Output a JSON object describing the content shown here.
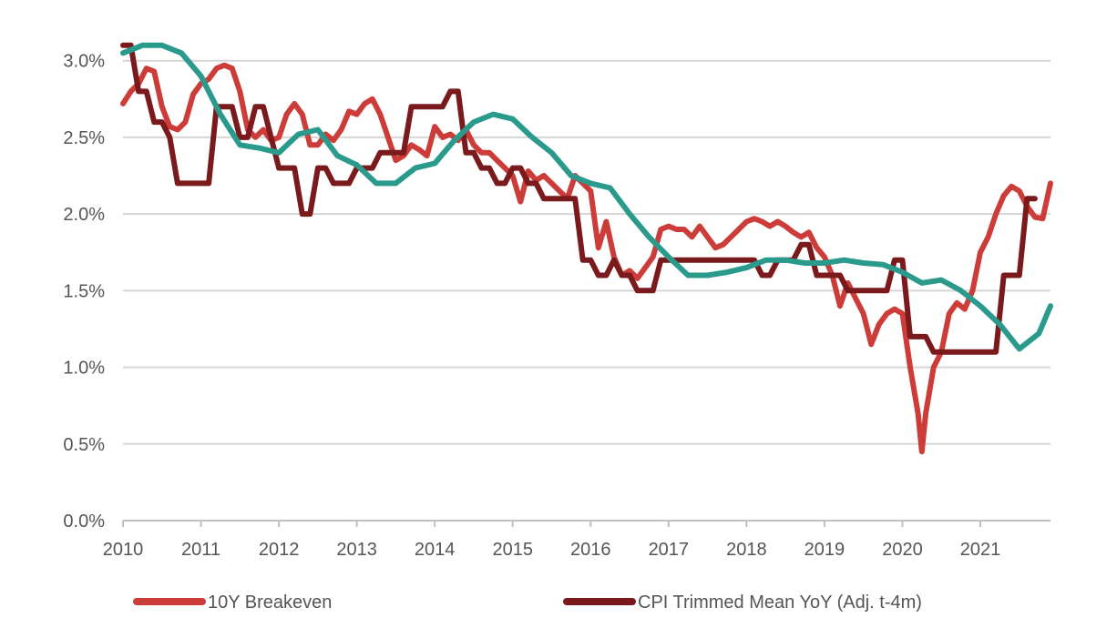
{
  "chart_data": {
    "type": "line",
    "title": "",
    "xlabel": "",
    "ylabel": "",
    "xlim": [
      2010,
      2021.9
    ],
    "ylim": [
      0,
      3.2
    ],
    "x_ticks": [
      "2010",
      "2011",
      "2012",
      "2013",
      "2014",
      "2015",
      "2016",
      "2017",
      "2018",
      "2019",
      "2020",
      "2021"
    ],
    "y_ticks": [
      "0.0%",
      "0.5%",
      "1.0%",
      "1.5%",
      "2.0%",
      "2.5%",
      "3.0%"
    ],
    "y_tick_values": [
      0,
      0.5,
      1.0,
      1.5,
      2.0,
      2.5,
      3.0
    ],
    "grid": "horizontal",
    "legend_position": "bottom",
    "series": [
      {
        "name": "10Y Breakeven",
        "color": "#cc3d3a",
        "x": [
          2010.0,
          2010.1,
          2010.2,
          2010.3,
          2010.4,
          2010.5,
          2010.6,
          2010.7,
          2010.8,
          2010.9,
          2011.0,
          2011.1,
          2011.2,
          2011.3,
          2011.4,
          2011.5,
          2011.6,
          2011.7,
          2011.8,
          2011.9,
          2012.0,
          2012.1,
          2012.2,
          2012.3,
          2012.4,
          2012.5,
          2012.6,
          2012.7,
          2012.8,
          2012.9,
          2013.0,
          2013.1,
          2013.2,
          2013.3,
          2013.4,
          2013.5,
          2013.6,
          2013.7,
          2013.8,
          2013.9,
          2014.0,
          2014.1,
          2014.2,
          2014.3,
          2014.4,
          2014.5,
          2014.6,
          2014.7,
          2014.8,
          2014.9,
          2015.0,
          2015.1,
          2015.2,
          2015.3,
          2015.4,
          2015.5,
          2015.6,
          2015.7,
          2015.8,
          2015.9,
          2016.0,
          2016.1,
          2016.2,
          2016.3,
          2016.4,
          2016.5,
          2016.6,
          2016.7,
          2016.8,
          2016.9,
          2017.0,
          2017.1,
          2017.2,
          2017.3,
          2017.4,
          2017.5,
          2017.6,
          2017.7,
          2017.8,
          2017.9,
          2018.0,
          2018.1,
          2018.2,
          2018.3,
          2018.4,
          2018.5,
          2018.6,
          2018.7,
          2018.8,
          2018.9,
          2019.0,
          2019.1,
          2019.2,
          2019.3,
          2019.4,
          2019.5,
          2019.6,
          2019.7,
          2019.8,
          2019.9,
          2020.0,
          2020.1,
          2020.2,
          2020.25,
          2020.3,
          2020.4,
          2020.5,
          2020.6,
          2020.7,
          2020.8,
          2020.9,
          2021.0,
          2021.1,
          2021.2,
          2021.3,
          2021.4,
          2021.5,
          2021.6,
          2021.7,
          2021.8,
          2021.9
        ],
        "values": [
          2.72,
          2.8,
          2.85,
          2.95,
          2.93,
          2.7,
          2.57,
          2.55,
          2.6,
          2.78,
          2.85,
          2.88,
          2.95,
          2.97,
          2.95,
          2.8,
          2.55,
          2.5,
          2.55,
          2.48,
          2.5,
          2.65,
          2.72,
          2.65,
          2.45,
          2.45,
          2.52,
          2.48,
          2.55,
          2.67,
          2.65,
          2.72,
          2.75,
          2.65,
          2.5,
          2.35,
          2.38,
          2.45,
          2.42,
          2.38,
          2.57,
          2.5,
          2.52,
          2.48,
          2.55,
          2.45,
          2.4,
          2.4,
          2.35,
          2.3,
          2.25,
          2.08,
          2.28,
          2.22,
          2.25,
          2.2,
          2.15,
          2.1,
          2.25,
          2.2,
          2.15,
          1.78,
          1.95,
          1.72,
          1.6,
          1.63,
          1.58,
          1.65,
          1.72,
          1.9,
          1.92,
          1.9,
          1.9,
          1.85,
          1.92,
          1.85,
          1.78,
          1.8,
          1.85,
          1.9,
          1.95,
          1.97,
          1.95,
          1.92,
          1.95,
          1.92,
          1.88,
          1.85,
          1.88,
          1.78,
          1.72,
          1.6,
          1.4,
          1.55,
          1.45,
          1.35,
          1.15,
          1.28,
          1.35,
          1.38,
          1.35,
          1.0,
          0.7,
          0.45,
          0.7,
          1.0,
          1.1,
          1.35,
          1.42,
          1.38,
          1.5,
          1.75,
          1.85,
          2.0,
          2.12,
          2.18,
          2.15,
          2.05,
          1.98,
          1.97,
          2.2
        ]
      },
      {
        "name": "CPI Trimmed Mean YoY (Adj. t-4m)",
        "color": "#7a1a1c",
        "x": [
          2010.0,
          2010.1,
          2010.2,
          2010.3,
          2010.4,
          2010.5,
          2010.6,
          2010.7,
          2010.8,
          2010.9,
          2011.0,
          2011.1,
          2011.2,
          2011.3,
          2011.4,
          2011.5,
          2011.6,
          2011.7,
          2011.8,
          2011.9,
          2012.0,
          2012.1,
          2012.2,
          2012.3,
          2012.4,
          2012.5,
          2012.6,
          2012.7,
          2012.8,
          2012.9,
          2013.0,
          2013.1,
          2013.2,
          2013.3,
          2013.4,
          2013.5,
          2013.6,
          2013.7,
          2013.8,
          2013.9,
          2014.0,
          2014.1,
          2014.2,
          2014.3,
          2014.4,
          2014.5,
          2014.6,
          2014.7,
          2014.8,
          2014.9,
          2015.0,
          2015.1,
          2015.2,
          2015.3,
          2015.4,
          2015.5,
          2015.6,
          2015.7,
          2015.8,
          2015.9,
          2016.0,
          2016.1,
          2016.2,
          2016.3,
          2016.4,
          2016.5,
          2016.6,
          2016.7,
          2016.8,
          2016.9,
          2017.0,
          2017.1,
          2017.2,
          2017.3,
          2017.4,
          2017.5,
          2017.6,
          2017.7,
          2017.8,
          2017.9,
          2018.0,
          2018.1,
          2018.2,
          2018.3,
          2018.4,
          2018.5,
          2018.6,
          2018.7,
          2018.8,
          2018.9,
          2019.0,
          2019.1,
          2019.2,
          2019.3,
          2019.4,
          2019.5,
          2019.6,
          2019.7,
          2019.8,
          2019.9,
          2020.0,
          2020.1,
          2020.2,
          2020.3,
          2020.4,
          2020.5,
          2020.6,
          2020.7,
          2020.8,
          2020.9,
          2021.0,
          2021.1,
          2021.2,
          2021.3,
          2021.4,
          2021.5,
          2021.6,
          2021.7
        ],
        "values": [
          3.1,
          3.1,
          2.8,
          2.8,
          2.6,
          2.6,
          2.5,
          2.2,
          2.2,
          2.2,
          2.2,
          2.2,
          2.7,
          2.7,
          2.7,
          2.5,
          2.5,
          2.7,
          2.7,
          2.5,
          2.3,
          2.3,
          2.3,
          2.0,
          2.0,
          2.3,
          2.3,
          2.2,
          2.2,
          2.2,
          2.3,
          2.3,
          2.3,
          2.4,
          2.4,
          2.4,
          2.4,
          2.7,
          2.7,
          2.7,
          2.7,
          2.7,
          2.8,
          2.8,
          2.4,
          2.4,
          2.3,
          2.3,
          2.2,
          2.2,
          2.3,
          2.3,
          2.2,
          2.2,
          2.1,
          2.1,
          2.1,
          2.1,
          2.1,
          1.7,
          1.7,
          1.6,
          1.6,
          1.7,
          1.6,
          1.6,
          1.5,
          1.5,
          1.5,
          1.7,
          1.7,
          1.7,
          1.7,
          1.7,
          1.7,
          1.7,
          1.7,
          1.7,
          1.7,
          1.7,
          1.7,
          1.7,
          1.6,
          1.6,
          1.7,
          1.7,
          1.7,
          1.8,
          1.8,
          1.6,
          1.6,
          1.6,
          1.6,
          1.5,
          1.5,
          1.5,
          1.5,
          1.5,
          1.5,
          1.7,
          1.7,
          1.2,
          1.2,
          1.2,
          1.1,
          1.1,
          1.1,
          1.1,
          1.1,
          1.1,
          1.1,
          1.1,
          1.1,
          1.6,
          1.6,
          1.6,
          2.1,
          2.1
        ]
      },
      {
        "name": "",
        "color": "#2a9a8c",
        "x": [
          2010.0,
          2010.25,
          2010.5,
          2010.75,
          2011.0,
          2011.25,
          2011.5,
          2011.75,
          2012.0,
          2012.25,
          2012.5,
          2012.75,
          2013.0,
          2013.25,
          2013.5,
          2013.75,
          2014.0,
          2014.25,
          2014.5,
          2014.75,
          2015.0,
          2015.25,
          2015.5,
          2015.75,
          2016.0,
          2016.25,
          2016.5,
          2016.75,
          2017.0,
          2017.25,
          2017.5,
          2017.75,
          2018.0,
          2018.25,
          2018.5,
          2018.75,
          2019.0,
          2019.25,
          2019.5,
          2019.75,
          2020.0,
          2020.25,
          2020.5,
          2020.75,
          2021.0,
          2021.25,
          2021.5,
          2021.75,
          2021.9
        ],
        "values": [
          3.05,
          3.1,
          3.1,
          3.05,
          2.9,
          2.65,
          2.45,
          2.43,
          2.4,
          2.52,
          2.55,
          2.38,
          2.32,
          2.2,
          2.2,
          2.3,
          2.33,
          2.48,
          2.6,
          2.65,
          2.62,
          2.5,
          2.4,
          2.25,
          2.2,
          2.17,
          2.0,
          1.85,
          1.72,
          1.6,
          1.6,
          1.62,
          1.65,
          1.7,
          1.7,
          1.68,
          1.68,
          1.7,
          1.68,
          1.67,
          1.62,
          1.55,
          1.57,
          1.5,
          1.4,
          1.28,
          1.12,
          1.22,
          1.4
        ]
      }
    ]
  }
}
